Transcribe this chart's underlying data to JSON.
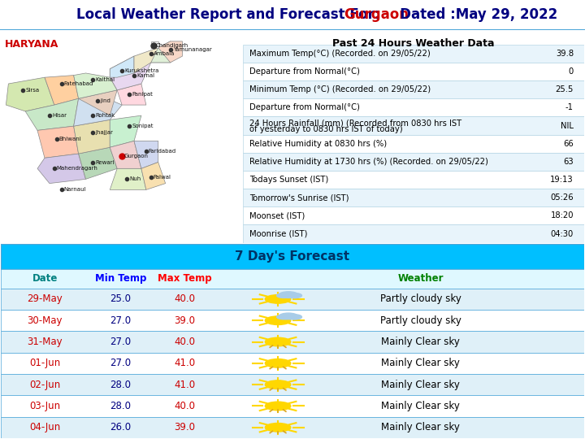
{
  "title_main": "Local Weather Report and Forecast For: ",
  "title_city": "Gurgaon",
  "title_date": "   Dated :May 29, 2022",
  "title_bg": "#cce8f4",
  "title_color": "#000080",
  "title_city_color": "#cc0000",
  "haryana_label": "HARYANA",
  "past24_title": "Past 24 Hours Weather Data",
  "past24_rows": [
    [
      "Maximum Temp(°C) (Recorded. on 29/05/22)",
      "39.8"
    ],
    [
      "Departure from Normal(°C)",
      "0"
    ],
    [
      "Minimum Temp (°C) (Recorded. on 29/05/22)",
      "25.5"
    ],
    [
      "Departure from Normal(°C)",
      "-1"
    ],
    [
      "24 Hours Rainfall (mm) (Recorded from 0830 hrs IST\nof yesterday to 0830 hrs IST of today)",
      "NIL"
    ],
    [
      "Relative Humidity at 0830 hrs (%)",
      "66"
    ],
    [
      "Relative Humidity at 1730 hrs (%) (Recorded. on 29/05/22)",
      "63"
    ],
    [
      "Todays Sunset (IST)",
      "19:13"
    ],
    [
      "Tomorrow's Sunrise (IST)",
      "05:26"
    ],
    [
      "Moonset (IST)",
      "18:20"
    ],
    [
      "Moonrise (IST)",
      "04:30"
    ]
  ],
  "forecast_title": "7 Day's Forecast",
  "forecast_header_date": "Date",
  "forecast_header_min": "Min Temp",
  "forecast_header_max": "Max Temp",
  "forecast_header_weather": "Weather",
  "forecast_header_date_color": "#008080",
  "forecast_header_min_color": "#0000ff",
  "forecast_header_max_color": "#ff0000",
  "forecast_header_weather_color": "#008000",
  "forecast_rows": [
    [
      "29-May",
      "25.0",
      "40.0",
      "Partly cloudy sky"
    ],
    [
      "30-May",
      "27.0",
      "39.0",
      "Partly cloudy sky"
    ],
    [
      "31-May",
      "27.0",
      "40.0",
      "Mainly Clear sky"
    ],
    [
      "01-Jun",
      "27.0",
      "41.0",
      "Mainly Clear sky"
    ],
    [
      "02-Jun",
      "28.0",
      "41.0",
      "Mainly Clear sky"
    ],
    [
      "03-Jun",
      "28.0",
      "40.0",
      "Mainly Clear sky"
    ],
    [
      "04-Jun",
      "26.0",
      "39.0",
      "Mainly Clear sky"
    ]
  ],
  "border_color": "#4da6d9",
  "forecast_title_bg": "#00bfff",
  "forecast_title_color": "#003366",
  "row_bg_even": "#dff0f8",
  "row_bg_odd": "#ffffff",
  "date_color": "#cc0000",
  "min_color": "#000080",
  "max_color": "#cc0000",
  "weather_color": "#000000"
}
